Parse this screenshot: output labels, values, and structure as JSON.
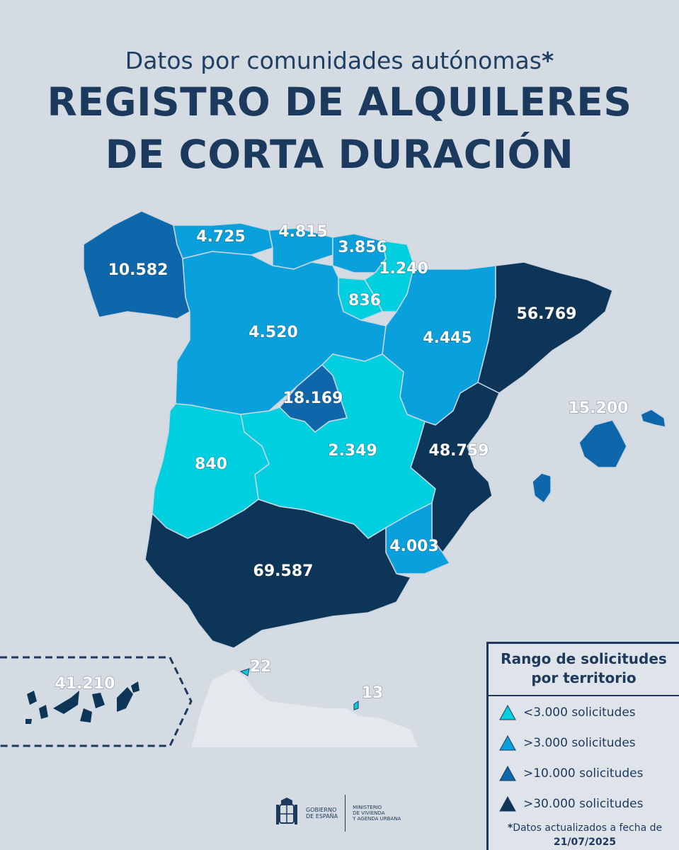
{
  "header": {
    "subtitle": "Datos por comunidades autónomas",
    "subtitle_mark": "*",
    "title_line1": "REGISTRO DE ALQUILERES",
    "title_line2": "DE CORTA DURACIÓN"
  },
  "colors": {
    "range1": "#00cfe0",
    "range2": "#0aa0dc",
    "range3": "#0e67aa",
    "range4": "#0d3557",
    "background": "#d4dbe2",
    "text": "#1d3a5c"
  },
  "regions": [
    {
      "name": "Galicia",
      "value": "10.582",
      "range": 3
    },
    {
      "name": "Asturias",
      "value": "4.725",
      "range": 2
    },
    {
      "name": "Cantabria",
      "value": "4.815",
      "range": 2
    },
    {
      "name": "País Vasco",
      "value": "3.856",
      "range": 2
    },
    {
      "name": "Navarra",
      "value": "1.240",
      "range": 1
    },
    {
      "name": "La Rioja",
      "value": "836",
      "range": 1
    },
    {
      "name": "Castilla y León",
      "value": "4.520",
      "range": 2
    },
    {
      "name": "Aragón",
      "value": "4.445",
      "range": 2
    },
    {
      "name": "Cataluña",
      "value": "56.769",
      "range": 4
    },
    {
      "name": "Madrid",
      "value": "18.169",
      "range": 3
    },
    {
      "name": "Extremadura",
      "value": "840",
      "range": 1
    },
    {
      "name": "Castilla-La Mancha",
      "value": "2.349",
      "range": 1
    },
    {
      "name": "Comunidad Valenciana",
      "value": "48.759",
      "range": 4
    },
    {
      "name": "Región de Murcia",
      "value": "4.003",
      "range": 2
    },
    {
      "name": "Andalucía",
      "value": "69.587",
      "range": 4
    },
    {
      "name": "Illes Balears",
      "value": "15.200",
      "range": 3
    },
    {
      "name": "Canarias",
      "value": "41.210",
      "range": 4
    },
    {
      "name": "Ceuta",
      "value": "22",
      "range": 1
    },
    {
      "name": "Melilla",
      "value": "13",
      "range": 1
    }
  ],
  "legend": {
    "title_line1": "Rango de solicitudes",
    "title_line2": "por territorio",
    "items": [
      {
        "label": "<3.000 solicitudes",
        "color": "#00cfe0"
      },
      {
        "label": ">3.000 solicitudes",
        "color": "#0aa0dc"
      },
      {
        "label": ">10.000 solicitudes",
        "color": "#0e67aa"
      },
      {
        "label": ">30.000 solicitudes",
        "color": "#0d3557"
      }
    ],
    "note_mark": "*",
    "note_text": "Datos actualizados a fecha de",
    "note_date": "21/07/2025"
  },
  "footer": {
    "gov_line1": "GOBIERNO",
    "gov_line2": "DE ESPAÑA",
    "ministry_line1": "MINISTERIO",
    "ministry_line2": "DE VIVIENDA",
    "ministry_line3": "Y AGENDA URBANA"
  }
}
